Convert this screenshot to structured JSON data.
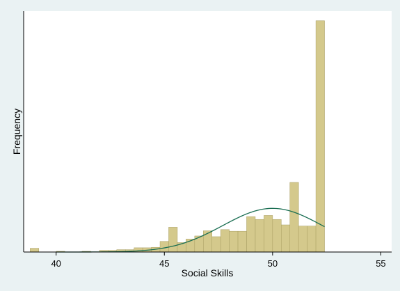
{
  "chart_data": {
    "type": "bar",
    "subtype": "histogram",
    "xlabel": "Social Skills",
    "ylabel": "Frequency",
    "xlim": [
      38.5,
      55.5
    ],
    "ylim": [
      0,
      100
    ],
    "x_ticks": [
      40,
      45,
      50,
      55
    ],
    "y_ticks_shown": false,
    "grid": false,
    "bin_width": 0.4,
    "bar_color": "#d4c98c",
    "bar_edge_color": "#a89e62",
    "curve_color": "#1a6e52",
    "plot_background": "#ffffff",
    "outer_background": "#eaf2f3",
    "bins": [
      {
        "x0": 38.8,
        "value": 1.6
      },
      {
        "x0": 40.0,
        "value": 0.3
      },
      {
        "x0": 41.2,
        "value": 0.3
      },
      {
        "x0": 42.0,
        "value": 0.7
      },
      {
        "x0": 42.4,
        "value": 0.7
      },
      {
        "x0": 42.8,
        "value": 1.0
      },
      {
        "x0": 43.2,
        "value": 1.0
      },
      {
        "x0": 43.6,
        "value": 1.8
      },
      {
        "x0": 44.0,
        "value": 1.8
      },
      {
        "x0": 44.4,
        "value": 2.0
      },
      {
        "x0": 44.8,
        "value": 4.5
      },
      {
        "x0": 45.2,
        "value": 10.5
      },
      {
        "x0": 45.6,
        "value": 4.0
      },
      {
        "x0": 46.0,
        "value": 5.5
      },
      {
        "x0": 46.4,
        "value": 6.8
      },
      {
        "x0": 46.8,
        "value": 9.0
      },
      {
        "x0": 47.2,
        "value": 6.5
      },
      {
        "x0": 47.6,
        "value": 9.5
      },
      {
        "x0": 48.0,
        "value": 8.8
      },
      {
        "x0": 48.4,
        "value": 8.8
      },
      {
        "x0": 48.8,
        "value": 15.0
      },
      {
        "x0": 49.2,
        "value": 13.8
      },
      {
        "x0": 49.6,
        "value": 15.5
      },
      {
        "x0": 50.0,
        "value": 13.8
      },
      {
        "x0": 50.4,
        "value": 11.5
      },
      {
        "x0": 50.8,
        "value": 29.5
      },
      {
        "x0": 51.2,
        "value": 11.0
      },
      {
        "x0": 51.6,
        "value": 11.0
      },
      {
        "x0": 52.0,
        "value": 98.0
      }
    ],
    "normal_curve": {
      "mean": 50.0,
      "sd": 2.3,
      "peak": 18.5,
      "x_range": [
        40.0,
        52.4
      ]
    }
  }
}
